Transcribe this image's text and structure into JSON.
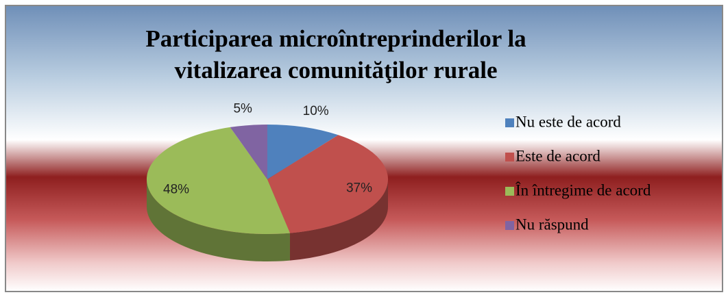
{
  "chart_data": {
    "type": "pie",
    "title": [
      "Participarea microîntreprinderilor la",
      "vitalizarea comunităţilor rurale"
    ],
    "categories": [
      "Nu este de acord",
      "Este de acord",
      "În întregime de acord",
      "Nu răspund"
    ],
    "values": [
      10,
      37,
      48,
      5
    ],
    "value_labels": [
      "10%",
      "37%",
      "48%",
      "5%"
    ],
    "colors": [
      "#4f81bd",
      "#c0504d",
      "#9bbb59",
      "#8064a2"
    ],
    "legend": "right"
  }
}
